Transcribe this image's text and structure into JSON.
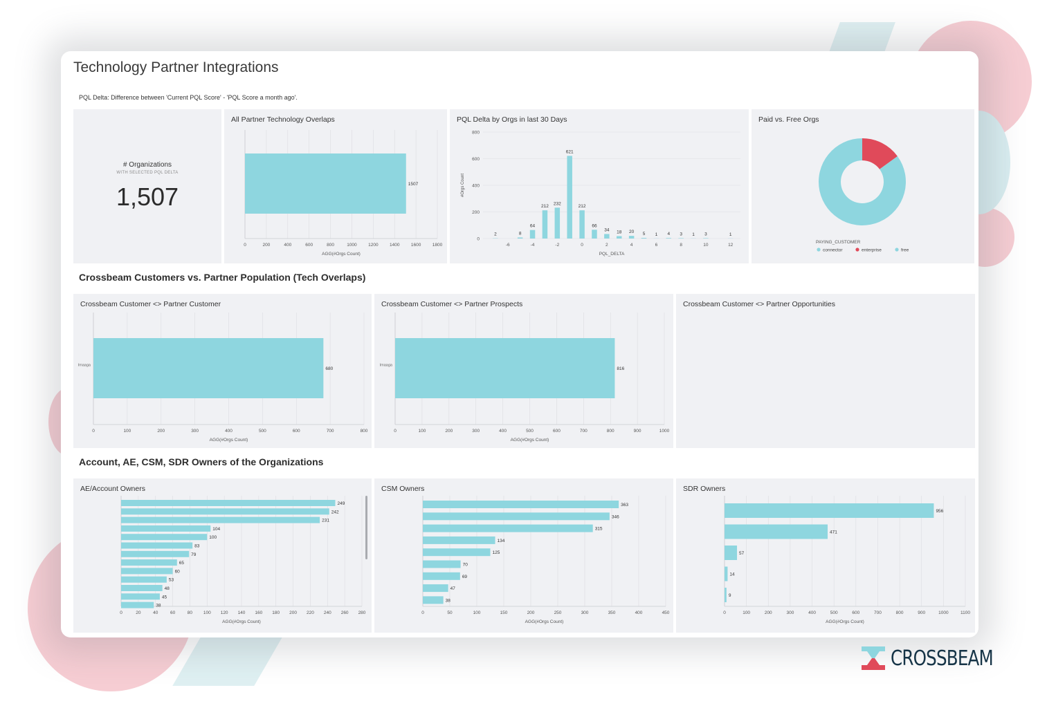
{
  "title": "Technology Partner Integrations",
  "note": "PQL Delta: Difference between 'Current PQL Score' - 'PQL Score a month ago'.",
  "sections": {
    "overlaps": "Crossbeam Customers vs. Partner Population (Tech Overlaps)",
    "owners": "Account, AE, CSM, SDR Owners of the Organizations"
  },
  "kpi": {
    "label": "# Organizations",
    "sublabel": "WITH SELECTED PQL DELTA",
    "value": "1,507"
  },
  "panels": {
    "overlaps": "All Partner Technology Overlaps",
    "pql": "PQL Delta by Orgs in last 30 Days",
    "paid": "Paid vs. Free Orgs",
    "customer": "Crossbeam Customer <> Partner Customer",
    "prospects": "Crossbeam Customer <> Partner Prospects",
    "opportunities": "Crossbeam Customer <> Partner Opportunities",
    "ae": "AE/Account Owners",
    "csm": "CSM Owners",
    "sdr": "SDR Owners"
  },
  "logo": {
    "text": "CROSSBEAM"
  },
  "colors": {
    "bar": "#8ed6df",
    "enterprise": "#e04a5a",
    "logo_dark": "#163447",
    "logo_teal": "#8ed6df",
    "logo_red": "#e04a5a"
  },
  "chart_data": [
    {
      "id": "overlaps",
      "type": "bar",
      "orientation": "horizontal",
      "categories": [
        ""
      ],
      "values": [
        1507
      ],
      "xlabel": "AGG(#Orgs Count)",
      "xlim": [
        0,
        1800
      ],
      "xticks": [
        0,
        200,
        400,
        600,
        800,
        1000,
        1200,
        1400,
        1600,
        1800
      ]
    },
    {
      "id": "pql",
      "type": "bar",
      "x": [
        -7,
        -5,
        -4,
        -3,
        -2,
        -1,
        0,
        1,
        2,
        3,
        4,
        5,
        6,
        7,
        8,
        9,
        10,
        12
      ],
      "values": [
        2,
        8,
        64,
        212,
        232,
        621,
        212,
        66,
        34,
        18,
        20,
        5,
        1,
        4,
        3,
        1,
        3,
        1
      ],
      "xlabel": "PQL_DELTA",
      "ylabel": "#Orgs Count",
      "ylim": [
        0,
        800
      ],
      "xticks": [
        -6,
        -4,
        -2,
        0,
        2,
        4,
        6,
        8,
        10,
        12
      ],
      "yticks": [
        0,
        200,
        400,
        600,
        800
      ],
      "grid": true
    },
    {
      "id": "paid",
      "type": "pie",
      "donut": true,
      "legend_title": "PAYING_CUSTOMER",
      "legend_position": "bottom",
      "labels": [
        "connector",
        "enterprise",
        "free"
      ],
      "values": [
        0,
        15,
        85
      ],
      "colors": [
        "#8ed6df",
        "#e04a5a",
        "#8ed6df"
      ]
    },
    {
      "id": "customer",
      "type": "bar",
      "orientation": "horizontal",
      "categories": [
        "Imaaga"
      ],
      "values": [
        680
      ],
      "xlabel": "AGG(#Orgs Count)",
      "xlim": [
        0,
        800
      ],
      "xticks": [
        0,
        100,
        200,
        300,
        400,
        500,
        600,
        700,
        800
      ]
    },
    {
      "id": "prospects",
      "type": "bar",
      "orientation": "horizontal",
      "categories": [
        "Imaaga"
      ],
      "values": [
        816
      ],
      "xlabel": "AGG(#Orgs Count)",
      "xlim": [
        0,
        1000
      ],
      "xticks": [
        0,
        100,
        200,
        300,
        400,
        500,
        600,
        700,
        800,
        900,
        1000
      ]
    },
    {
      "id": "ae",
      "type": "bar",
      "orientation": "horizontal",
      "values": [
        249,
        242,
        231,
        104,
        100,
        83,
        79,
        65,
        60,
        53,
        48,
        45,
        38
      ],
      "xlabel": "AGG(#Orgs Count)",
      "xlim": [
        0,
        280
      ],
      "xticks": [
        0,
        20,
        40,
        60,
        80,
        100,
        120,
        140,
        160,
        180,
        200,
        220,
        240,
        260,
        280
      ]
    },
    {
      "id": "csm",
      "type": "bar",
      "orientation": "horizontal",
      "values": [
        363,
        346,
        315,
        134,
        125,
        70,
        69,
        47,
        38
      ],
      "xlabel": "AGG(#Orgs Count)",
      "xlim": [
        0,
        450
      ],
      "xticks": [
        0,
        50,
        100,
        150,
        200,
        250,
        300,
        350,
        400,
        450
      ]
    },
    {
      "id": "sdr",
      "type": "bar",
      "orientation": "horizontal",
      "values": [
        956,
        471,
        57,
        14,
        9
      ],
      "xlabel": "AGG(#Orgs Count)",
      "xlim": [
        0,
        1100
      ],
      "xticks": [
        0,
        100,
        200,
        300,
        400,
        500,
        600,
        700,
        800,
        900,
        1000,
        1100
      ]
    }
  ]
}
